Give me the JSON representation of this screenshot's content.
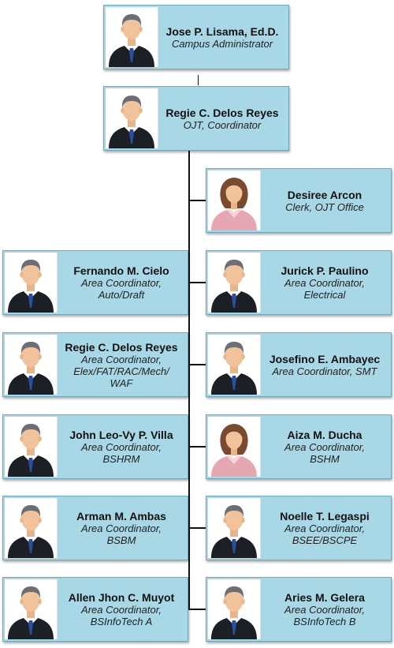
{
  "chart": {
    "top": [
      {
        "name": "Jose P. Lisama, Ed.D.",
        "role": "Campus Administrator",
        "gender": "male"
      },
      {
        "name": "Regie C. Delos Reyes",
        "role": "OJT, Coordinator",
        "gender": "male"
      }
    ],
    "clerk": {
      "name": "Desiree Arcon",
      "role": "Clerk, OJT Office",
      "gender": "female"
    },
    "left": [
      {
        "name": "Fernando M. Cielo",
        "role_lines": [
          "Area Coordinator,",
          "Auto/Draft"
        ],
        "gender": "male"
      },
      {
        "name": "Regie C. Delos Reyes",
        "role_lines": [
          "Area Coordinator,",
          "Elex/FAT/RAC/Mech/",
          "WAF"
        ],
        "gender": "male"
      },
      {
        "name": "John Leo-Vy P. Villa",
        "role_lines": [
          "Area Coordinator,",
          "BSHRM"
        ],
        "gender": "male"
      },
      {
        "name": "Arman M. Ambas",
        "role_lines": [
          "Area Coordinator,",
          "BSBM"
        ],
        "gender": "male"
      },
      {
        "name": "Allen Jhon C. Muyot",
        "role_lines": [
          "Area Coordinator,",
          "BSInfoTech A"
        ],
        "gender": "male"
      }
    ],
    "right": [
      {
        "name": "Jurick P. Paulino",
        "role_lines": [
          "Area Coordinator,",
          "Electrical"
        ],
        "gender": "male"
      },
      {
        "name": "Josefino E. Ambayec",
        "role_lines": [
          "Area Coordinator, SMT"
        ],
        "gender": "male"
      },
      {
        "name": "Aiza M. Ducha",
        "role_lines": [
          "Area Coordinator,",
          "BSHM"
        ],
        "gender": "female"
      },
      {
        "name": "Noelle T. Legaspi",
        "role_lines": [
          "Area Coordinator,",
          "BSEE/BSCPE"
        ],
        "gender": "male"
      },
      {
        "name": "Aries M. Gelera",
        "role_lines": [
          "Area Coordinator,",
          "BSInfoTech B"
        ],
        "gender": "male"
      }
    ]
  },
  "colors": {
    "card_bg": "#a8d7e6",
    "card_border": "#6fa9bd",
    "connector": "#111111"
  }
}
